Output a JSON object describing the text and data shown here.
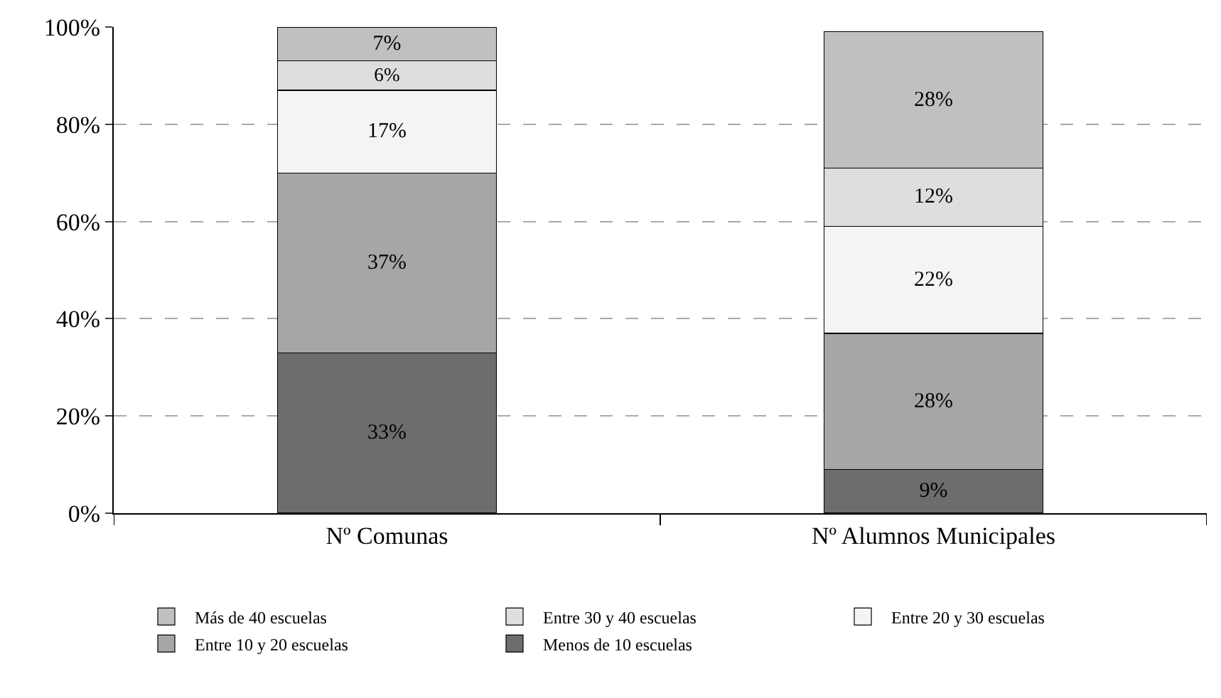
{
  "chart_data": {
    "type": "bar",
    "stacked": true,
    "categories": [
      "Nº Comunas",
      "Nº Alumnos Municipales"
    ],
    "series": [
      {
        "name": "Menos de 10 escuelas",
        "color": "#6d6d6d",
        "values": [
          33,
          9
        ],
        "value_labels": [
          "33%",
          "9%"
        ]
      },
      {
        "name": "Entre 10 y 20 escuelas",
        "color": "#a6a6a6",
        "values": [
          37,
          28
        ],
        "value_labels": [
          "37%",
          "28%"
        ]
      },
      {
        "name": "Entre 20 y 30 escuelas",
        "color": "#f4f4f4",
        "values": [
          17,
          22
        ],
        "value_labels": [
          "17%",
          "22%"
        ]
      },
      {
        "name": "Entre 30 y 40 escuelas",
        "color": "#dedede",
        "values": [
          6,
          12
        ],
        "value_labels": [
          "6%",
          "12%"
        ]
      },
      {
        "name": "Más de 40 escuelas",
        "color": "#c0c0c0",
        "values": [
          7,
          28
        ],
        "value_labels": [
          "7%",
          "28%"
        ]
      }
    ],
    "ylim": [
      0,
      100
    ],
    "yticks": [
      {
        "value": 0,
        "label": "0%"
      },
      {
        "value": 20,
        "label": "20%"
      },
      {
        "value": 40,
        "label": "40%"
      },
      {
        "value": 60,
        "label": "60%"
      },
      {
        "value": 80,
        "label": "80%"
      },
      {
        "value": 100,
        "label": "100%"
      }
    ],
    "grid": "y",
    "legend": "bottom"
  }
}
